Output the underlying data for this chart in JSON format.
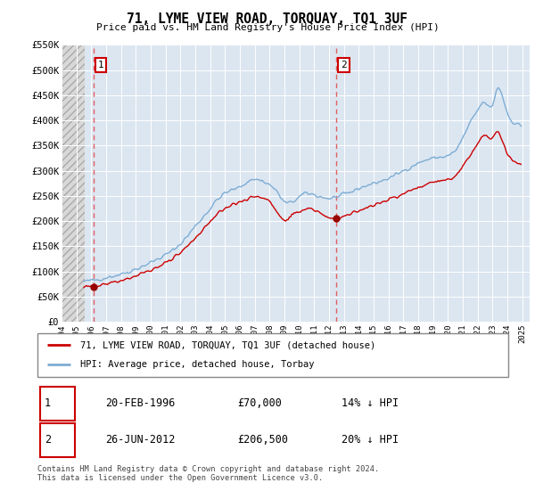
{
  "title": "71, LYME VIEW ROAD, TORQUAY, TQ1 3UF",
  "subtitle": "Price paid vs. HM Land Registry's House Price Index (HPI)",
  "ylim": [
    0,
    550000
  ],
  "yticks": [
    0,
    50000,
    100000,
    150000,
    200000,
    250000,
    300000,
    350000,
    400000,
    450000,
    500000,
    550000
  ],
  "ytick_labels": [
    "£0",
    "£50K",
    "£100K",
    "£150K",
    "£200K",
    "£250K",
    "£300K",
    "£350K",
    "£400K",
    "£450K",
    "£500K",
    "£550K"
  ],
  "sale1_date": 1996.13,
  "sale1_price": 70000,
  "sale1_label": "1",
  "sale2_date": 2012.48,
  "sale2_price": 206500,
  "sale2_label": "2",
  "legend_line1": "71, LYME VIEW ROAD, TORQUAY, TQ1 3UF (detached house)",
  "legend_line2": "HPI: Average price, detached house, Torbay",
  "table_row1": [
    "1",
    "20-FEB-1996",
    "£70,000",
    "14% ↓ HPI"
  ],
  "table_row2": [
    "2",
    "26-JUN-2012",
    "£206,500",
    "20% ↓ HPI"
  ],
  "footnote": "Contains HM Land Registry data © Crown copyright and database right 2024.\nThis data is licensed under the Open Government Licence v3.0.",
  "plot_bg": "#dce6f1",
  "grid_color": "#ffffff",
  "red_line_color": "#cc0000",
  "blue_line_color": "#7dadd4",
  "sale_dot_color": "#990000",
  "vline_color": "#e06060",
  "xlim_start": 1994.0,
  "xlim_end": 2025.5,
  "hatch_end": 1995.58
}
